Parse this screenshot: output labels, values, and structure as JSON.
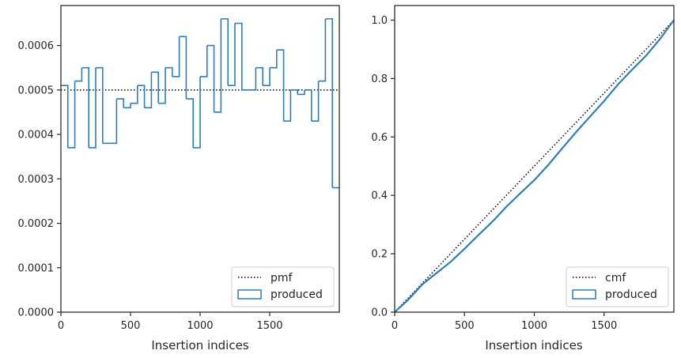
{
  "colors": {
    "series": "#2e7fb4",
    "reference": "#000000",
    "frame": "#262626"
  },
  "chart_data": [
    {
      "type": "histogram-step",
      "xlabel": "Insertion indices",
      "ylabel": "",
      "xlim": [
        0,
        2000
      ],
      "ylim": [
        0,
        0.00069
      ],
      "xticks": [
        0,
        500,
        1000,
        1500
      ],
      "xtick_labels": [
        "0",
        "500",
        "1000",
        "1500"
      ],
      "yticks": [
        0,
        0.0001,
        0.0002,
        0.0003,
        0.0004,
        0.0005,
        0.0006
      ],
      "ytick_labels": [
        "0.0000",
        "0.0001",
        "0.0002",
        "0.0003",
        "0.0004",
        "0.0005",
        "0.0006"
      ],
      "grid": false,
      "legend_position": "lower right",
      "series": [
        {
          "name": "pmf",
          "kind": "reference-line",
          "style": "dotted",
          "value": 0.0005
        },
        {
          "name": "produced",
          "kind": "step",
          "bin_width": 50,
          "values": [
            0.00051,
            0.00037,
            0.00052,
            0.00055,
            0.00037,
            0.00055,
            0.00038,
            0.00038,
            0.00048,
            0.00046,
            0.00047,
            0.00051,
            0.00046,
            0.00054,
            0.00047,
            0.00055,
            0.00053,
            0.00062,
            0.00048,
            0.00037,
            0.00053,
            0.0006,
            0.00045,
            0.00066,
            0.00051,
            0.00065,
            0.0005,
            0.0005,
            0.00055,
            0.00051,
            0.00055,
            0.00059,
            0.00043,
            0.0005,
            0.00049,
            0.0005,
            0.00043,
            0.00052,
            0.00066,
            0.00028
          ]
        }
      ]
    },
    {
      "type": "line",
      "xlabel": "Insertion indices",
      "ylabel": "",
      "xlim": [
        0,
        2000
      ],
      "ylim": [
        0,
        1.05
      ],
      "xticks": [
        0,
        500,
        1000,
        1500
      ],
      "xtick_labels": [
        "0",
        "500",
        "1000",
        "1500"
      ],
      "yticks": [
        0,
        0.2,
        0.4,
        0.6,
        0.8,
        1.0
      ],
      "ytick_labels": [
        "0.0",
        "0.2",
        "0.4",
        "0.6",
        "0.8",
        "1.0"
      ],
      "grid": false,
      "legend_position": "lower right",
      "series": [
        {
          "name": "cmf",
          "kind": "reference-line",
          "style": "dotted",
          "x": [
            0,
            2000
          ],
          "y": [
            0,
            1.0
          ]
        },
        {
          "name": "produced",
          "kind": "line",
          "x": [
            0,
            100,
            200,
            300,
            400,
            500,
            600,
            700,
            800,
            900,
            1000,
            1100,
            1200,
            1300,
            1400,
            1500,
            1600,
            1700,
            1800,
            1900,
            2000
          ],
          "y": [
            0,
            0.044,
            0.096,
            0.134,
            0.172,
            0.217,
            0.264,
            0.31,
            0.361,
            0.407,
            0.452,
            0.504,
            0.561,
            0.617,
            0.67,
            0.723,
            0.78,
            0.83,
            0.878,
            0.935,
            1.0
          ]
        }
      ]
    }
  ]
}
